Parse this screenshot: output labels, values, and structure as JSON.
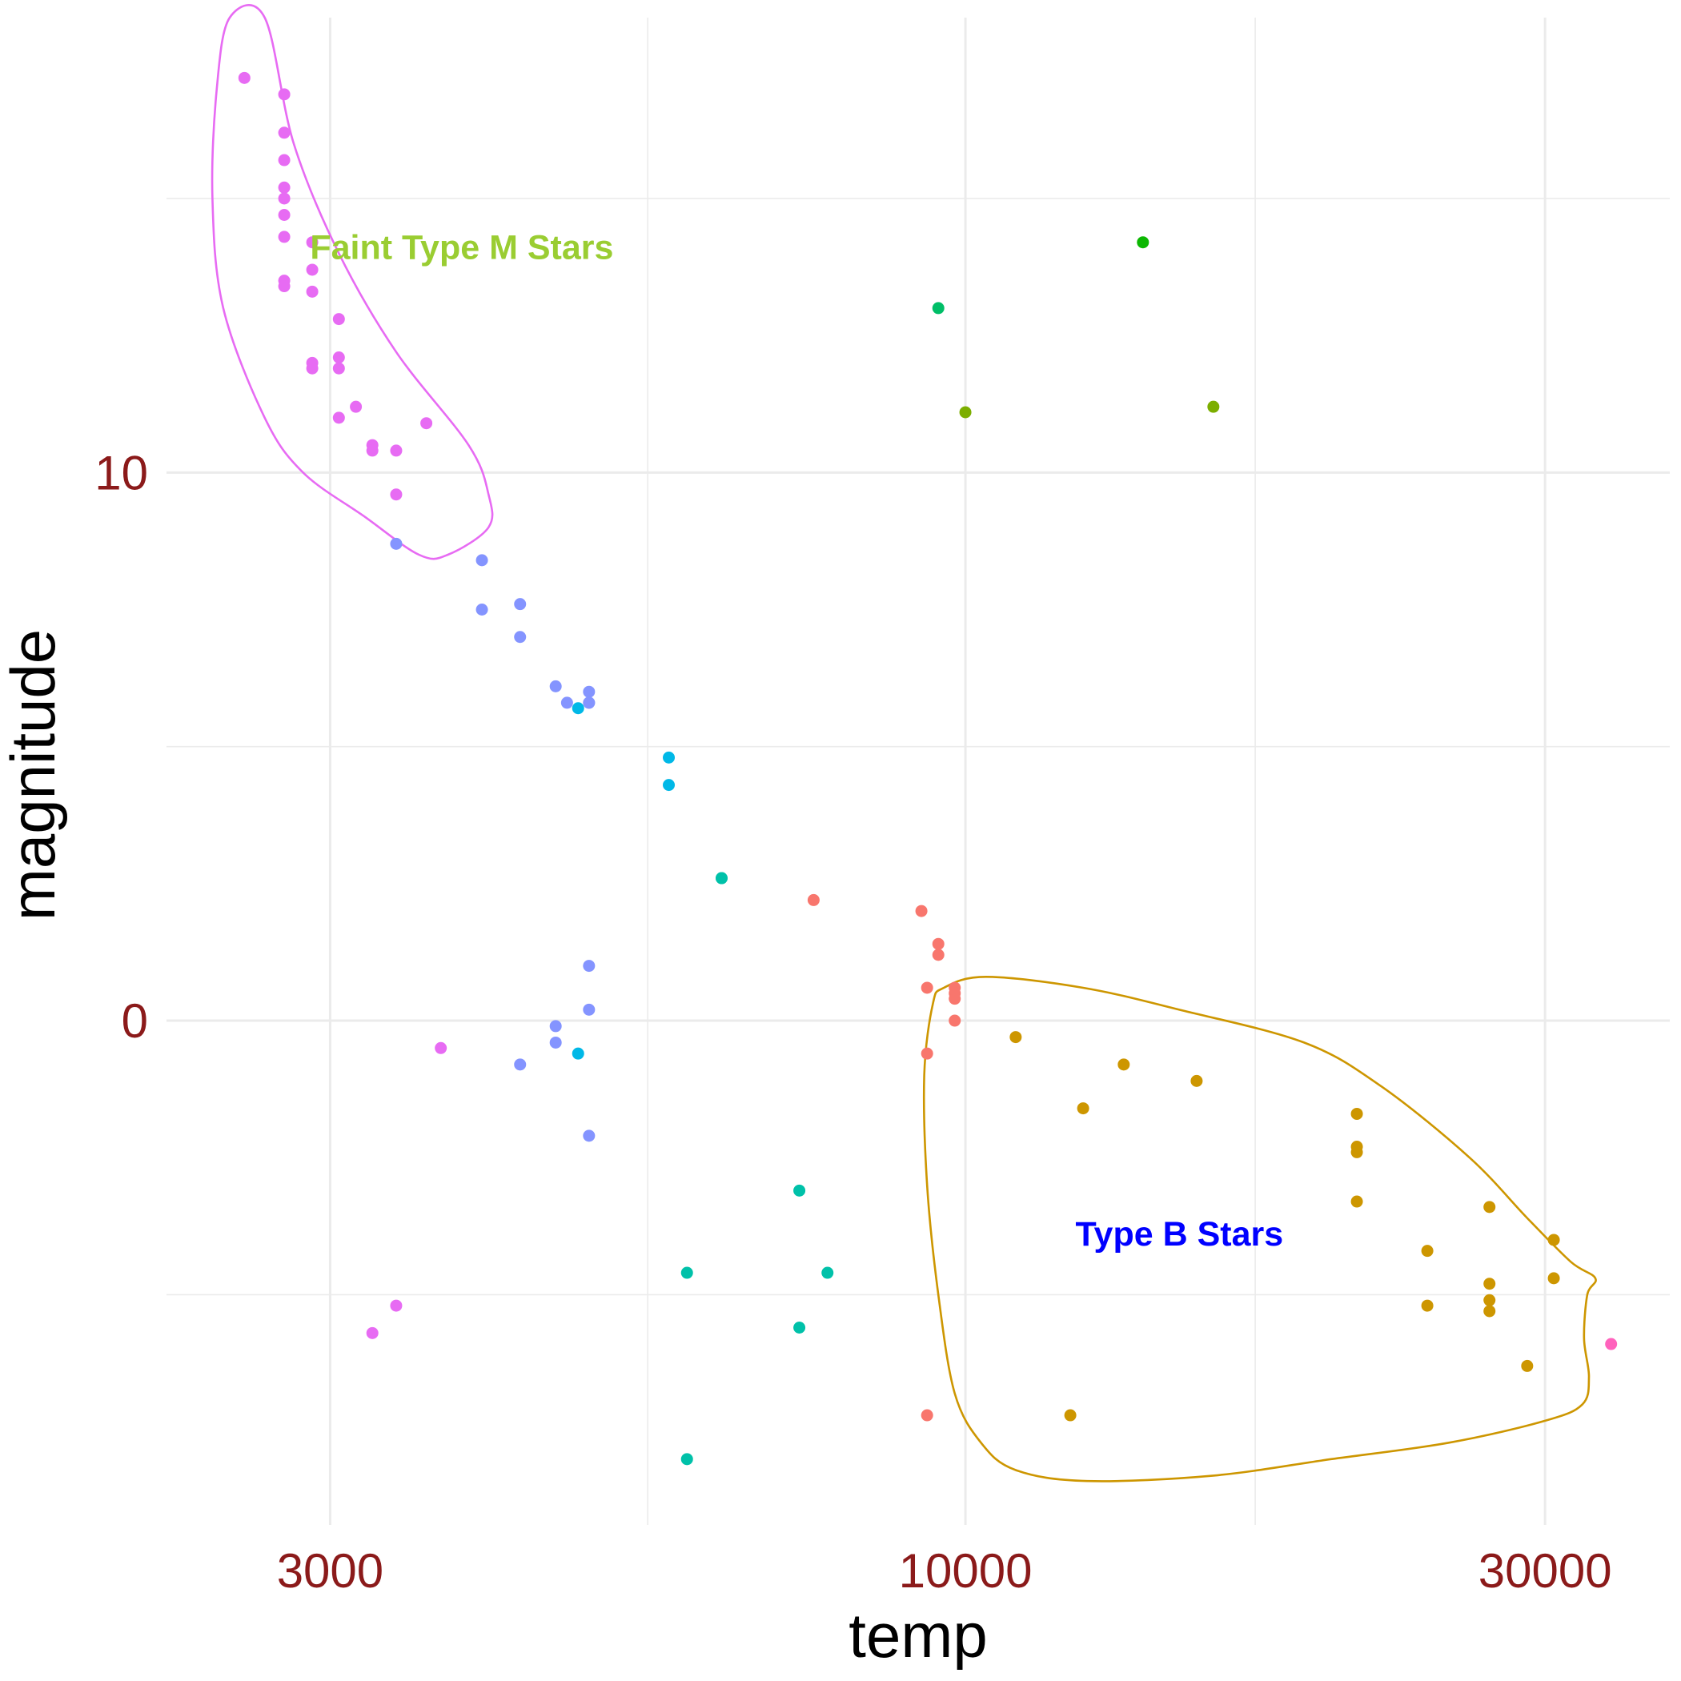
{
  "chart_data": {
    "type": "scatter",
    "x_scale": "log",
    "xlabel": "temp",
    "ylabel": "magnitude",
    "xlim": [
      2200,
      38000
    ],
    "ylim": [
      -9.2,
      18.3
    ],
    "x_ticks": [
      3000,
      10000,
      30000
    ],
    "x_tick_labels": [
      "3000",
      "10000",
      "30000"
    ],
    "x_minor_ticks": [
      5477,
      17320
    ],
    "y_ticks": [
      0,
      10
    ],
    "y_tick_labels": [
      "0",
      "10"
    ],
    "y_minor_ticks": [
      -5,
      5,
      15
    ],
    "grid": true,
    "label_color": "#8B1A1A",
    "grid_color": "#EBEBEB",
    "series": [
      {
        "color": "#F8766D",
        "points": [
          [
            7500,
            2.2
          ],
          [
            9200,
            2.0
          ],
          [
            9500,
            1.4
          ],
          [
            9500,
            1.2
          ],
          [
            9300,
            0.6
          ],
          [
            9800,
            0.6
          ],
          [
            9800,
            0.5
          ],
          [
            9800,
            0.4
          ],
          [
            9800,
            0.0
          ],
          [
            9300,
            -0.6
          ],
          [
            9300,
            -7.2
          ]
        ]
      },
      {
        "color": "#CD9600",
        "points": [
          [
            11000,
            -0.3
          ],
          [
            12500,
            -1.6
          ],
          [
            13500,
            -0.8
          ],
          [
            15500,
            -1.1
          ],
          [
            21000,
            -1.7
          ],
          [
            21000,
            -2.3
          ],
          [
            21000,
            -2.4
          ],
          [
            21000,
            -3.3
          ],
          [
            24000,
            -4.2
          ],
          [
            24000,
            -5.2
          ],
          [
            27000,
            -3.4
          ],
          [
            27000,
            -4.8
          ],
          [
            27000,
            -5.1
          ],
          [
            27000,
            -5.3
          ],
          [
            29000,
            -6.3
          ],
          [
            30500,
            -4.0
          ],
          [
            30500,
            -4.7
          ],
          [
            12200,
            -7.2
          ]
        ]
      },
      {
        "color": "#7CAE00",
        "points": [
          [
            10000,
            11.1
          ],
          [
            16000,
            11.2
          ]
        ]
      },
      {
        "color": "#0CB702",
        "points": [
          [
            14000,
            14.2
          ]
        ]
      },
      {
        "color": "#00BE67",
        "points": [
          [
            9500,
            13.0
          ]
        ]
      },
      {
        "color": "#00C1A9",
        "points": [
          [
            6300,
            2.6
          ],
          [
            6300,
            2.6
          ],
          [
            7300,
            -3.1
          ],
          [
            7300,
            -5.6
          ],
          [
            7700,
            -4.6
          ],
          [
            5900,
            -4.6
          ],
          [
            5900,
            -8.0
          ]
        ]
      },
      {
        "color": "#00B8E7",
        "points": [
          [
            5700,
            4.8
          ],
          [
            5700,
            4.3
          ],
          [
            4800,
            5.7
          ],
          [
            4800,
            -0.6
          ]
        ]
      },
      {
        "color": "#8494FF",
        "points": [
          [
            4000,
            8.4
          ],
          [
            4000,
            7.5
          ],
          [
            4300,
            7.6
          ],
          [
            4300,
            7.0
          ],
          [
            4600,
            6.1
          ],
          [
            4700,
            5.8
          ],
          [
            4900,
            5.8
          ],
          [
            4900,
            5.8
          ],
          [
            4900,
            6.0
          ],
          [
            4900,
            1.0
          ],
          [
            4900,
            0.2
          ],
          [
            4600,
            -0.1
          ],
          [
            4600,
            -0.4
          ],
          [
            4300,
            -0.8
          ],
          [
            4900,
            -2.1
          ],
          [
            3400,
            8.7
          ]
        ]
      },
      {
        "color": "#E76BF3",
        "points": [
          [
            2550,
            17.2
          ],
          [
            2750,
            16.9
          ],
          [
            2750,
            16.2
          ],
          [
            2750,
            15.7
          ],
          [
            2750,
            15.2
          ],
          [
            2750,
            15.0
          ],
          [
            2750,
            14.7
          ],
          [
            2750,
            14.3
          ],
          [
            2750,
            13.5
          ],
          [
            2750,
            13.4
          ],
          [
            2900,
            14.2
          ],
          [
            2900,
            13.7
          ],
          [
            2900,
            13.3
          ],
          [
            2900,
            12.0
          ],
          [
            2900,
            11.9
          ],
          [
            3050,
            12.8
          ],
          [
            3050,
            12.1
          ],
          [
            3050,
            11.9
          ],
          [
            3050,
            11.0
          ],
          [
            3150,
            11.2
          ],
          [
            3250,
            10.5
          ],
          [
            3250,
            10.4
          ],
          [
            3400,
            10.4
          ],
          [
            3400,
            9.6
          ],
          [
            3600,
            10.9
          ],
          [
            3700,
            -0.5
          ],
          [
            3250,
            -5.7
          ],
          [
            3400,
            -5.2
          ]
        ]
      },
      {
        "color": "#FF62BC",
        "points": [
          [
            34000,
            -5.9
          ]
        ]
      }
    ],
    "annotations": [
      {
        "text": "Faint Type M Stars",
        "color": "#9ACD32",
        "x": 3850,
        "y": 13.9
      },
      {
        "text": "Type B Stars",
        "color": "#0000FF",
        "x": 15000,
        "y": -4.1
      }
    ],
    "contours": [
      {
        "color": "#E76BF3",
        "points": [
          [
            2480,
            18.3
          ],
          [
            2420,
            17.0
          ],
          [
            2400,
            15.0
          ],
          [
            2450,
            13.0
          ],
          [
            2650,
            11.0
          ],
          [
            2850,
            10.0
          ],
          [
            3200,
            9.2
          ],
          [
            3550,
            8.5
          ],
          [
            3750,
            8.5
          ],
          [
            4050,
            9.0
          ],
          [
            4050,
            9.6
          ],
          [
            3900,
            10.5
          ],
          [
            3400,
            12.2
          ],
          [
            3050,
            14.0
          ],
          [
            2800,
            16.0
          ],
          [
            2650,
            18.3
          ]
        ]
      },
      {
        "color": "#CD9600",
        "points": [
          [
            9400,
            0.3
          ],
          [
            9600,
            0.6
          ],
          [
            10400,
            0.8
          ],
          [
            12500,
            0.6
          ],
          [
            15000,
            0.2
          ],
          [
            19000,
            -0.4
          ],
          [
            22000,
            -1.2
          ],
          [
            26000,
            -2.5
          ],
          [
            29000,
            -3.6
          ],
          [
            31500,
            -4.4
          ],
          [
            33000,
            -4.7
          ],
          [
            32500,
            -5.0
          ],
          [
            32300,
            -5.8
          ],
          [
            32600,
            -6.5
          ],
          [
            32200,
            -7.0
          ],
          [
            30000,
            -7.3
          ],
          [
            25000,
            -7.7
          ],
          [
            20000,
            -8.0
          ],
          [
            16000,
            -8.3
          ],
          [
            12600,
            -8.4
          ],
          [
            11000,
            -8.2
          ],
          [
            10300,
            -7.7
          ],
          [
            9800,
            -6.8
          ],
          [
            9500,
            -5.0
          ],
          [
            9300,
            -3.0
          ],
          [
            9250,
            -1.0
          ]
        ]
      }
    ]
  }
}
